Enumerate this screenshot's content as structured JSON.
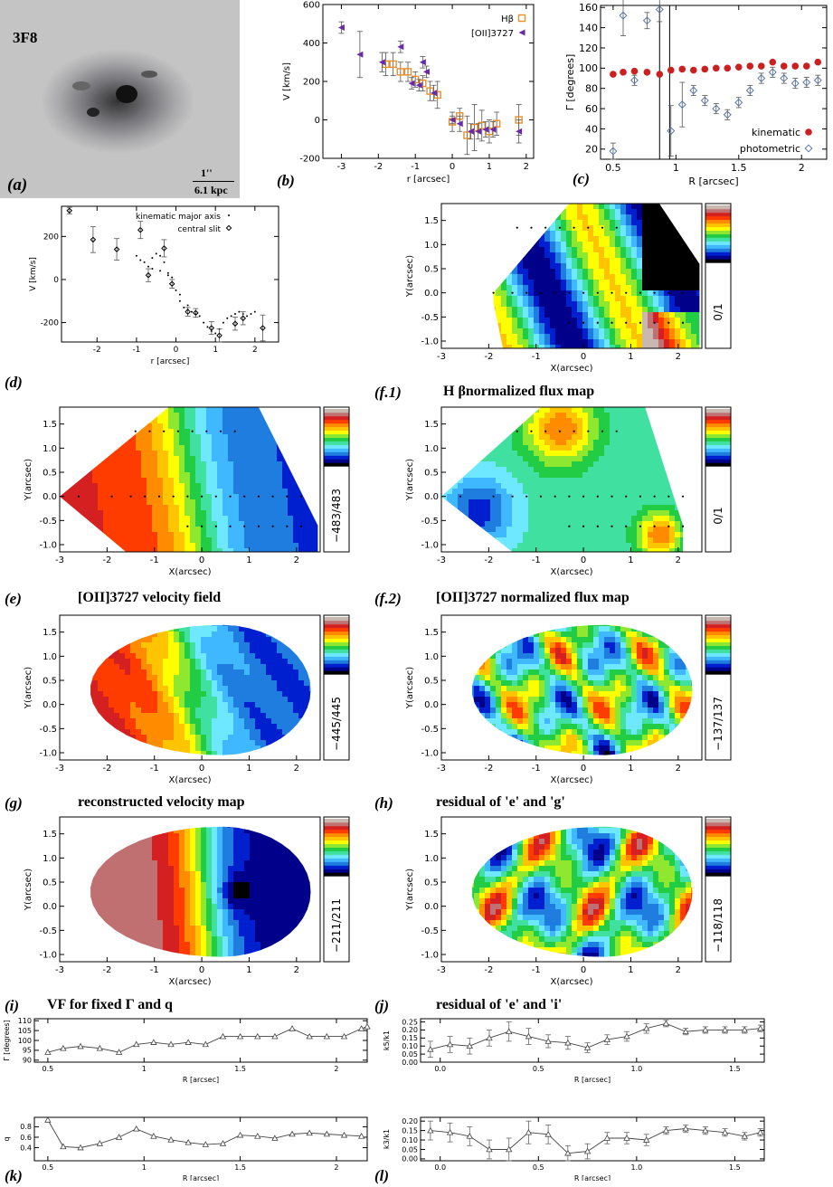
{
  "panel_labels": {
    "a": "(a)",
    "b": "(b)",
    "c": "(c)",
    "d": "(d)",
    "e": "(e)",
    "f1": "(f.1)",
    "f2": "(f.2)",
    "g": "(g)",
    "h": "(h)",
    "i": "(i)",
    "j": "(j)",
    "k": "(k)",
    "l": "(l)"
  },
  "image_a": {
    "name": "3F8",
    "scale_top": "1''",
    "scale_bottom": "6.1 kpc"
  },
  "titles": {
    "f1": "H βnormalized flux map",
    "e": "[OII]3727 velocity field",
    "f2": "[OII]3727 normalized flux map",
    "g": "reconstructed velocity map",
    "h": "residual of 'e' and 'g'",
    "i": "VF for fixed Γ and q",
    "j": "residual of 'e' and 'i'"
  },
  "map_axis": {
    "xlabel": "X(arcsec)",
    "ylabel": "Y(arcsec)"
  },
  "colorbars": {
    "f1": "0/1",
    "e": "−483/483",
    "f2": "0/1",
    "g": "−445/445",
    "h": "−137/137",
    "i": "−211/211",
    "j": "−118/118"
  },
  "colors": {
    "kinematic": "#cc1f1f",
    "photometric": "#5a78aa",
    "hbeta": "#e8902a",
    "oii": "#6a2aa8"
  },
  "chart_data": [
    {
      "id": "b",
      "type": "scatter",
      "xlabel": "r [arcsec]",
      "ylabel": "V [km/s]",
      "xlim": [
        -3.5,
        2.2
      ],
      "ylim": [
        -200,
        600
      ],
      "xticks": [
        -3,
        -2,
        -1,
        0,
        1,
        2
      ],
      "yticks": [
        -200,
        0,
        200,
        400,
        600
      ],
      "series": [
        {
          "name": "Hβ",
          "marker": "square",
          "x": [
            -1.8,
            -1.6,
            -1.4,
            -1.2,
            -1.0,
            -0.8,
            -0.6,
            -0.4,
            0.0,
            0.2,
            0.4,
            0.6,
            0.8,
            1.0,
            1.2,
            1.8
          ],
          "y": [
            290,
            290,
            250,
            250,
            210,
            190,
            150,
            130,
            -10,
            20,
            -80,
            -40,
            -30,
            -60,
            -20,
            0
          ],
          "err": [
            60,
            60,
            50,
            50,
            40,
            40,
            50,
            70,
            50,
            40,
            100,
            120,
            80,
            60,
            60,
            80
          ]
        },
        {
          "name": "[OII]3727",
          "marker": "triangle-left",
          "x": [
            -3.0,
            -2.5,
            -1.9,
            -1.4,
            -1.1,
            -0.9,
            -0.8,
            -0.7,
            -0.5,
            0.0,
            0.2,
            0.5,
            0.7,
            0.9,
            1.1,
            1.8
          ],
          "y": [
            480,
            340,
            300,
            380,
            190,
            180,
            300,
            250,
            140,
            0,
            -20,
            -60,
            -60,
            -50,
            -50,
            -60
          ],
          "err": [
            30,
            120,
            50,
            30,
            30,
            30,
            30,
            30,
            40,
            20,
            40,
            40,
            40,
            40,
            40,
            60
          ]
        }
      ]
    },
    {
      "id": "c",
      "type": "scatter",
      "xlabel": "R [arcsec]",
      "ylabel": "Γ [degrees]",
      "xlim": [
        0.4,
        2.2
      ],
      "ylim": [
        10,
        162
      ],
      "xticks": [
        0.5,
        1.0,
        1.5,
        2.0
      ],
      "yticks": [
        20,
        40,
        60,
        80,
        100,
        120,
        140,
        160
      ],
      "legend": "bottom-right",
      "vlines": [
        0.87,
        0.95
      ],
      "series": [
        {
          "name": "kinematic",
          "marker": "circle",
          "x": [
            0.5,
            0.58,
            0.67,
            0.77,
            0.87,
            0.96,
            1.05,
            1.14,
            1.23,
            1.32,
            1.41,
            1.5,
            1.59,
            1.68,
            1.77,
            1.86,
            1.95,
            2.04,
            2.13
          ],
          "y": [
            94,
            96,
            97,
            96,
            94,
            98,
            99,
            98,
            99,
            100,
            100,
            101,
            102,
            102,
            106,
            102,
            102,
            102,
            106
          ]
        },
        {
          "name": "photometric",
          "marker": "diamond",
          "x": [
            0.5,
            0.58,
            0.67,
            0.77,
            0.87,
            0.96,
            1.05,
            1.14,
            1.23,
            1.32,
            1.41,
            1.5,
            1.59,
            1.68,
            1.77,
            1.86,
            1.95,
            2.04,
            2.13
          ],
          "y": [
            18,
            152,
            88,
            147,
            158,
            38,
            64,
            78,
            68,
            60,
            54,
            66,
            78,
            90,
            96,
            90,
            85,
            86,
            88
          ],
          "err": [
            8,
            20,
            5,
            8,
            12,
            25,
            22,
            5,
            5,
            5,
            5,
            5,
            5,
            5,
            5,
            5,
            5,
            5,
            5
          ]
        }
      ]
    },
    {
      "id": "d",
      "type": "scatter",
      "xlabel": "r [arcsec]",
      "ylabel": "V [km/s]",
      "xlim": [
        -2.9,
        2.6
      ],
      "ylim": [
        -290,
        340
      ],
      "xticks": [
        -2,
        -1,
        0,
        1,
        2
      ],
      "yticks": [
        -200,
        0,
        200
      ],
      "legend": "top-right",
      "series": [
        {
          "name": "kinematic major axis",
          "marker": "dot",
          "x": [
            -1.0,
            -0.9,
            -0.8,
            -0.7,
            -0.6,
            -0.5,
            -0.4,
            -0.3,
            -0.2,
            -0.1,
            0.0,
            0.1,
            0.2,
            0.3,
            0.4,
            0.5,
            0.6,
            0.7,
            0.8,
            0.9,
            1.0,
            1.1,
            1.2,
            1.3,
            1.4,
            1.5,
            1.6,
            1.7,
            1.8,
            1.9,
            2.0,
            -0.6,
            -0.4,
            -0.2,
            0.1,
            0.3
          ],
          "y": [
            110,
            90,
            80,
            60,
            100,
            120,
            110,
            80,
            30,
            10,
            -50,
            -100,
            -130,
            -140,
            -150,
            -160,
            -170,
            -200,
            -220,
            -240,
            -250,
            -230,
            -200,
            -180,
            -170,
            -160,
            -150,
            -160,
            -170,
            -160,
            -150,
            50,
            40,
            20,
            -70,
            -120
          ]
        },
        {
          "name": "central slit",
          "marker": "diamond",
          "x": [
            -2.7,
            -2.1,
            -1.5,
            -0.9,
            -0.7,
            -0.3,
            -0.1,
            0.3,
            0.5,
            0.9,
            1.1,
            1.5,
            1.7,
            2.2
          ],
          "y": [
            320,
            185,
            140,
            230,
            20,
            145,
            -20,
            -150,
            -155,
            -225,
            -260,
            -205,
            -180,
            -225
          ],
          "err": [
            15,
            60,
            50,
            40,
            30,
            40,
            20,
            20,
            20,
            30,
            30,
            30,
            30,
            60
          ]
        }
      ]
    },
    {
      "id": "i",
      "type": "line",
      "xlabel": "R [arcsec]",
      "ylabel": "Γ [degrees]",
      "xlim": [
        0.43,
        2.16
      ],
      "ylim": [
        89,
        111
      ],
      "xticks": [
        0.5,
        1.0,
        1.5,
        2.0
      ],
      "yticks": [
        90,
        95,
        100,
        105,
        110
      ],
      "x": [
        0.5,
        0.58,
        0.67,
        0.77,
        0.87,
        0.96,
        1.05,
        1.14,
        1.23,
        1.32,
        1.41,
        1.5,
        1.59,
        1.68,
        1.77,
        1.86,
        1.95,
        2.04,
        2.13,
        2.16
      ],
      "y": [
        94,
        96,
        97,
        96,
        94,
        98,
        99,
        98,
        99,
        98,
        102,
        102,
        102,
        102,
        106,
        102,
        102,
        102,
        106,
        107
      ]
    },
    {
      "id": "j",
      "type": "line",
      "xlabel": "R [arcsec]",
      "ylabel": "k5/k1",
      "xlim": [
        -0.1,
        1.65
      ],
      "ylim": [
        0.0,
        0.27
      ],
      "xticks": [
        0.0,
        0.5,
        1.0,
        1.5
      ],
      "yticks": [
        0.0,
        0.05,
        0.1,
        0.15,
        0.2,
        0.25
      ],
      "x": [
        -0.05,
        0.05,
        0.15,
        0.25,
        0.35,
        0.45,
        0.55,
        0.65,
        0.75,
        0.85,
        0.95,
        1.05,
        1.15,
        1.25,
        1.35,
        1.45,
        1.55,
        1.63
      ],
      "y": [
        0.08,
        0.11,
        0.1,
        0.15,
        0.19,
        0.16,
        0.13,
        0.12,
        0.09,
        0.14,
        0.16,
        0.21,
        0.24,
        0.19,
        0.2,
        0.2,
        0.2,
        0.21
      ],
      "err": [
        0.05,
        0.05,
        0.05,
        0.05,
        0.06,
        0.05,
        0.04,
        0.04,
        0.03,
        0.03,
        0.03,
        0.03,
        0.02,
        0.02,
        0.02,
        0.02,
        0.02,
        0.02
      ]
    },
    {
      "id": "k",
      "type": "line",
      "xlabel": "R [arcsec]",
      "ylabel": "q",
      "xlim": [
        0.43,
        2.16
      ],
      "ylim": [
        0.15,
        0.98
      ],
      "xticks": [
        0.5,
        1.0,
        1.5,
        2.0
      ],
      "yticks": [
        0.4,
        0.6,
        0.8
      ],
      "x": [
        0.5,
        0.58,
        0.67,
        0.77,
        0.87,
        0.96,
        1.05,
        1.14,
        1.23,
        1.32,
        1.41,
        1.5,
        1.59,
        1.68,
        1.77,
        1.86,
        1.95,
        2.04,
        2.13
      ],
      "y": [
        0.93,
        0.42,
        0.4,
        0.48,
        0.6,
        0.76,
        0.62,
        0.55,
        0.5,
        0.46,
        0.48,
        0.64,
        0.62,
        0.58,
        0.66,
        0.68,
        0.66,
        0.64,
        0.62
      ]
    },
    {
      "id": "l",
      "type": "line",
      "xlabel": "R [arcsec]",
      "ylabel": "k3/k1",
      "xlim": [
        -0.1,
        1.65
      ],
      "ylim": [
        -0.01,
        0.22
      ],
      "xticks": [
        0.0,
        0.5,
        1.0,
        1.5
      ],
      "yticks": [
        0.0,
        0.05,
        0.1,
        0.15,
        0.2
      ],
      "x": [
        -0.05,
        0.05,
        0.15,
        0.25,
        0.35,
        0.45,
        0.55,
        0.65,
        0.75,
        0.85,
        0.95,
        1.05,
        1.15,
        1.25,
        1.35,
        1.45,
        1.55,
        1.63
      ],
      "y": [
        0.15,
        0.14,
        0.12,
        0.05,
        0.05,
        0.14,
        0.13,
        0.03,
        0.04,
        0.11,
        0.11,
        0.1,
        0.15,
        0.16,
        0.15,
        0.14,
        0.12,
        0.14
      ],
      "err": [
        0.05,
        0.05,
        0.05,
        0.05,
        0.06,
        0.06,
        0.05,
        0.04,
        0.04,
        0.03,
        0.03,
        0.03,
        0.02,
        0.02,
        0.02,
        0.02,
        0.02,
        0.02
      ]
    }
  ]
}
